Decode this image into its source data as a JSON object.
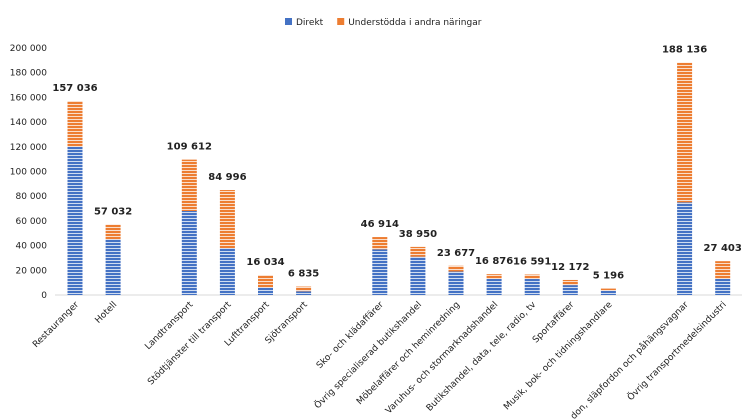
{
  "chart_data": {
    "type": "stacked_bar",
    "categories": [
      "Restauranger",
      "Hotell",
      null,
      "Landtransport",
      "Stödtjänster till transport",
      "Lufttransport",
      "Sjötransport",
      null,
      "Sko- och klädaffärer",
      "Övrig specialiserad butikshandel",
      "Möbelaffärer och heminredning",
      "Varuhus- och stormarknadshandel",
      "Butikshandel, data, tele, radio, tv",
      "Sportaffärer",
      "Musik, bok- och tidningshandlare",
      null,
      "don, släpfordon och påhängsvagnar",
      "Övrig transportmedelsindustri"
    ],
    "series": [
      {
        "name": "Direkt",
        "color": "#4472c4",
        "values": [
          120000,
          45000,
          null,
          68000,
          38000,
          6000,
          3000,
          null,
          37000,
          31000,
          19000,
          13000,
          13000,
          8000,
          3500,
          null,
          75000,
          13000
        ]
      },
      {
        "name": "Understödda i andra näringar",
        "color": "#ed7d31",
        "values": [
          37036,
          12032,
          null,
          41612,
          46996,
          10034,
          3835,
          null,
          9914,
          7950,
          4677,
          3876,
          3591,
          4172,
          1696,
          null,
          113136,
          14403
        ]
      }
    ],
    "totals": [
      157036,
      57032,
      null,
      109612,
      84996,
      16034,
      6835,
      null,
      46914,
      38950,
      23677,
      16876,
      16591,
      12172,
      5196,
      null,
      188136,
      27403
    ],
    "total_labels": [
      "157 036",
      "57 032",
      null,
      "109 612",
      "84 996",
      "16 034",
      "6 835",
      null,
      "46 914",
      "38 950",
      "23 677",
      "16 876",
      "16 591",
      "12 172",
      "5 196",
      null,
      "188 136",
      "27 403"
    ],
    "ylim": [
      0,
      200000
    ],
    "yticks": [
      {
        "value": 0,
        "label": "0"
      },
      {
        "value": 20000,
        "label": "20 000"
      },
      {
        "value": 40000,
        "label": "40 000"
      },
      {
        "value": 60000,
        "label": "60 000"
      },
      {
        "value": 80000,
        "label": "80 000"
      },
      {
        "value": 100000,
        "label": "100 000"
      },
      {
        "value": 120000,
        "label": "120 000"
      },
      {
        "value": 140000,
        "label": "140 000"
      },
      {
        "value": 160000,
        "label": "160 000"
      },
      {
        "value": 180000,
        "label": "180 000"
      },
      {
        "value": 200000,
        "label": "200 000"
      }
    ],
    "legend": "top",
    "grid": false
  }
}
